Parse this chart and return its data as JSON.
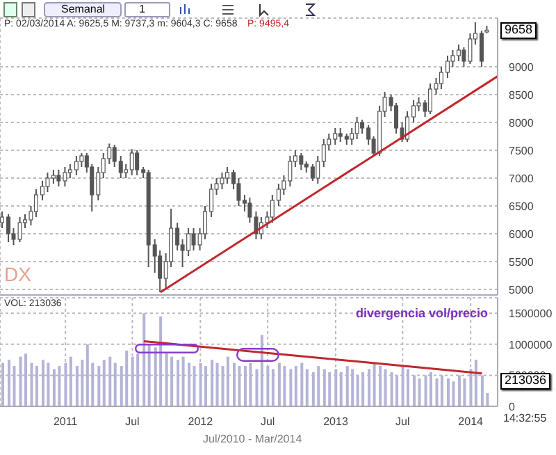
{
  "chart_data": [
    {
      "type": "candlestick",
      "color": "#555555",
      "grid": true,
      "tick_labels": "y",
      "annotations": [
        "P: 02/03/2014 A: 9625,5 M: 9737,3 m: 9604,3 C: 9658",
        "P: 9495,4",
        "DX",
        "9658",
        "Semanal",
        "1"
      ],
      "xlim": [
        "2010-07-08",
        "2014-03-15"
      ],
      "xticks": [
        {
          "value": "2011-01-01",
          "label": null
        },
        {
          "value": "2011-07-01",
          "label": null
        },
        {
          "value": "2012-01-01",
          "label": null
        },
        {
          "value": "2012-07-01",
          "label": null
        },
        {
          "value": "2013-01-01",
          "label": null
        },
        {
          "value": "2013-07-01",
          "label": null
        },
        {
          "value": "2014-01-01",
          "label": null
        }
      ],
      "ylim": [
        4900,
        9875
      ],
      "yticks": [
        5000,
        5500,
        6000,
        6500,
        7000,
        7500,
        8000,
        8500,
        9000
      ],
      "x": [
        "2010-07-15",
        "2010-08-01",
        "2010-08-15",
        "2010-09-01",
        "2010-09-15",
        "2010-10-01",
        "2010-10-15",
        "2010-11-01",
        "2010-11-15",
        "2010-12-01",
        "2010-12-15",
        "2011-01-01",
        "2011-01-15",
        "2011-02-01",
        "2011-02-15",
        "2011-03-01",
        "2011-03-15",
        "2011-04-01",
        "2011-04-15",
        "2011-05-01",
        "2011-05-15",
        "2011-06-01",
        "2011-06-15",
        "2011-07-01",
        "2011-07-15",
        "2011-08-01",
        "2011-08-15",
        "2011-09-01",
        "2011-09-15",
        "2011-10-01",
        "2011-10-15",
        "2011-11-01",
        "2011-11-15",
        "2011-12-01",
        "2011-12-15",
        "2012-01-01",
        "2012-01-15",
        "2012-02-01",
        "2012-02-15",
        "2012-03-01",
        "2012-03-15",
        "2012-04-01",
        "2012-04-15",
        "2012-05-01",
        "2012-05-15",
        "2012-06-01",
        "2012-06-15",
        "2012-07-01",
        "2012-07-15",
        "2012-08-01",
        "2012-08-15",
        "2012-09-01",
        "2012-09-15",
        "2012-10-01",
        "2012-10-15",
        "2012-11-01",
        "2012-11-15",
        "2012-12-01",
        "2012-12-15",
        "2013-01-01",
        "2013-01-15",
        "2013-02-01",
        "2013-02-15",
        "2013-03-01",
        "2013-03-15",
        "2013-04-01",
        "2013-04-15",
        "2013-05-01",
        "2013-05-15",
        "2013-06-01",
        "2013-06-15",
        "2013-07-01",
        "2013-07-15",
        "2013-08-01",
        "2013-08-15",
        "2013-09-01",
        "2013-09-15",
        "2013-10-01",
        "2013-10-15",
        "2013-11-01",
        "2013-11-15",
        "2013-12-01",
        "2013-12-15",
        "2014-01-01",
        "2014-01-15",
        "2014-02-01",
        "2014-02-15"
      ],
      "ohlc": [
        [
          6200,
          6400,
          6100,
          6300
        ],
        [
          6300,
          6350,
          5850,
          6000
        ],
        [
          6000,
          6100,
          5800,
          5900
        ],
        [
          5900,
          6300,
          5850,
          6200
        ],
        [
          6200,
          6350,
          6100,
          6250
        ],
        [
          6250,
          6500,
          6150,
          6400
        ],
        [
          6400,
          6800,
          6300,
          6700
        ],
        [
          6700,
          6950,
          6600,
          6850
        ],
        [
          6850,
          7100,
          6750,
          7000
        ],
        [
          7000,
          7150,
          6900,
          7050
        ],
        [
          7050,
          7150,
          6850,
          6950
        ],
        [
          6950,
          7200,
          6850,
          7100
        ],
        [
          7100,
          7250,
          7000,
          7150
        ],
        [
          7150,
          7400,
          7050,
          7300
        ],
        [
          7300,
          7450,
          7200,
          7400
        ],
        [
          7400,
          7450,
          7100,
          7200
        ],
        [
          7200,
          7250,
          6400,
          6700
        ],
        [
          6700,
          7200,
          6600,
          7100
        ],
        [
          7100,
          7450,
          7000,
          7350
        ],
        [
          7350,
          7620,
          7250,
          7550
        ],
        [
          7550,
          7600,
          7200,
          7300
        ],
        [
          7300,
          7400,
          7000,
          7100
        ],
        [
          7100,
          7250,
          7000,
          7150
        ],
        [
          7150,
          7520,
          7050,
          7450
        ],
        [
          7450,
          7500,
          7050,
          7150
        ],
        [
          7150,
          7200,
          7000,
          7100
        ],
        [
          7100,
          7150,
          5400,
          5800
        ],
        [
          5800,
          5900,
          5300,
          5600
        ],
        [
          5600,
          5700,
          4950,
          5200
        ],
        [
          5200,
          5650,
          5000,
          5500
        ],
        [
          5500,
          6450,
          5400,
          6100
        ],
        [
          6100,
          6200,
          5700,
          5800
        ],
        [
          5800,
          5900,
          5400,
          5700
        ],
        [
          5700,
          6100,
          5600,
          6000
        ],
        [
          6000,
          6100,
          5700,
          5800
        ],
        [
          5800,
          6100,
          5700,
          6000
        ],
        [
          6000,
          6500,
          5900,
          6400
        ],
        [
          6400,
          6900,
          6300,
          6800
        ],
        [
          6800,
          7000,
          6700,
          6900
        ],
        [
          6900,
          7100,
          6800,
          7000
        ],
        [
          7000,
          7200,
          6900,
          7100
        ],
        [
          7100,
          7150,
          6800,
          6900
        ],
        [
          6900,
          7000,
          6500,
          6600
        ],
        [
          6600,
          6700,
          6400,
          6550
        ],
        [
          6550,
          6650,
          6200,
          6300
        ],
        [
          6300,
          6400,
          5900,
          6000
        ],
        [
          6000,
          6300,
          5900,
          6200
        ],
        [
          6200,
          6400,
          6100,
          6300
        ],
        [
          6300,
          6700,
          6200,
          6600
        ],
        [
          6600,
          6900,
          6500,
          6800
        ],
        [
          6800,
          7050,
          6700,
          6950
        ],
        [
          6950,
          7400,
          6850,
          7300
        ],
        [
          7300,
          7500,
          7200,
          7400
        ],
        [
          7400,
          7450,
          7150,
          7250
        ],
        [
          7250,
          7300,
          7100,
          7200
        ],
        [
          7200,
          7250,
          6950,
          7000
        ],
        [
          7000,
          7400,
          6900,
          7300
        ],
        [
          7300,
          7700,
          7200,
          7600
        ],
        [
          7600,
          7800,
          7500,
          7700
        ],
        [
          7700,
          7900,
          7600,
          7800
        ],
        [
          7800,
          7900,
          7650,
          7750
        ],
        [
          7750,
          7800,
          7600,
          7700
        ],
        [
          7700,
          7900,
          7600,
          7800
        ],
        [
          7800,
          8100,
          7700,
          8000
        ],
        [
          8000,
          8050,
          7800,
          7900
        ],
        [
          7900,
          7950,
          7600,
          7700
        ],
        [
          7700,
          7750,
          7400,
          7450
        ],
        [
          7450,
          8300,
          7400,
          8200
        ],
        [
          8200,
          8550,
          8100,
          8450
        ],
        [
          8450,
          8500,
          8200,
          8300
        ],
        [
          8300,
          8350,
          7800,
          7900
        ],
        [
          7900,
          8000,
          7650,
          7700
        ],
        [
          7700,
          8200,
          7650,
          8100
        ],
        [
          8100,
          8400,
          8000,
          8300
        ],
        [
          8300,
          8450,
          8200,
          8350
        ],
        [
          8350,
          8400,
          8100,
          8200
        ],
        [
          8200,
          8700,
          8150,
          8600
        ],
        [
          8600,
          8800,
          8500,
          8700
        ],
        [
          8700,
          9000,
          8600,
          8900
        ],
        [
          8900,
          9200,
          8800,
          9100
        ],
        [
          9100,
          9300,
          9000,
          9200
        ],
        [
          9200,
          9400,
          9100,
          9300
        ],
        [
          9300,
          9350,
          9000,
          9100
        ],
        [
          9100,
          9600,
          9050,
          9500
        ],
        [
          9500,
          9800,
          9400,
          9600
        ],
        [
          9600,
          9650,
          9000,
          9100
        ],
        [
          9625.5,
          9737.3,
          9604.3,
          9658
        ]
      ],
      "series": [
        {
          "type": "line",
          "color": "#c0282d",
          "x": [
            "2011-09-15",
            "2014-03-15"
          ],
          "values": [
            4950,
            8830
          ]
        }
      ]
    },
    {
      "type": "bar",
      "color": "#b4b4d8",
      "grid": true,
      "annotations": [
        "VOL: 213036",
        "divergencia vol/precio",
        "213036",
        "Jul/2010 - Mar/2014",
        "14:32:55"
      ],
      "xlim": [
        "2010-07-08",
        "2014-03-15"
      ],
      "xticks": [
        {
          "value": "2011-01-01",
          "label": "2011"
        },
        {
          "value": "2011-07-01",
          "label": "Jul"
        },
        {
          "value": "2012-01-01",
          "label": "2012"
        },
        {
          "value": "2012-07-01",
          "label": "Jul"
        },
        {
          "value": "2013-01-01",
          "label": "2013"
        },
        {
          "value": "2013-07-01",
          "label": "Jul"
        },
        {
          "value": "2014-01-01",
          "label": "2014"
        }
      ],
      "ylim": [
        0,
        1750000
      ],
      "yticks": [
        0,
        500000,
        1000000,
        1500000
      ],
      "x": [
        "2010-07-15",
        "2010-08-01",
        "2010-08-15",
        "2010-09-01",
        "2010-09-15",
        "2010-10-01",
        "2010-10-15",
        "2010-11-01",
        "2010-11-15",
        "2010-12-01",
        "2010-12-15",
        "2011-01-01",
        "2011-01-15",
        "2011-02-01",
        "2011-02-15",
        "2011-03-01",
        "2011-03-15",
        "2011-04-01",
        "2011-04-15",
        "2011-05-01",
        "2011-05-15",
        "2011-06-01",
        "2011-06-15",
        "2011-07-01",
        "2011-07-15",
        "2011-08-01",
        "2011-08-15",
        "2011-09-01",
        "2011-09-15",
        "2011-10-01",
        "2011-10-15",
        "2011-11-01",
        "2011-11-15",
        "2011-12-01",
        "2011-12-15",
        "2012-01-01",
        "2012-01-15",
        "2012-02-01",
        "2012-02-15",
        "2012-03-01",
        "2012-03-15",
        "2012-04-01",
        "2012-04-15",
        "2012-05-01",
        "2012-05-15",
        "2012-06-01",
        "2012-06-15",
        "2012-07-01",
        "2012-07-15",
        "2012-08-01",
        "2012-08-15",
        "2012-09-01",
        "2012-09-15",
        "2012-10-01",
        "2012-10-15",
        "2012-11-01",
        "2012-11-15",
        "2012-12-01",
        "2012-12-15",
        "2013-01-01",
        "2013-01-15",
        "2013-02-01",
        "2013-02-15",
        "2013-03-01",
        "2013-03-15",
        "2013-04-01",
        "2013-04-15",
        "2013-05-01",
        "2013-05-15",
        "2013-06-01",
        "2013-06-15",
        "2013-07-01",
        "2013-07-15",
        "2013-08-01",
        "2013-08-15",
        "2013-09-01",
        "2013-09-15",
        "2013-10-01",
        "2013-10-15",
        "2013-11-01",
        "2013-11-15",
        "2013-12-01",
        "2013-12-15",
        "2014-01-01",
        "2014-01-15",
        "2014-02-01",
        "2014-02-15"
      ],
      "values": [
        700000,
        750000,
        650000,
        800000,
        850000,
        700000,
        650000,
        750000,
        700000,
        600000,
        650000,
        700000,
        800000,
        650000,
        750000,
        1000000,
        700000,
        650000,
        750000,
        800000,
        700000,
        650000,
        900000,
        800000,
        850000,
        1500000,
        1000000,
        950000,
        1450000,
        850000,
        800000,
        750000,
        800000,
        700000,
        650000,
        700000,
        650000,
        750000,
        700000,
        650000,
        800000,
        700000,
        650000,
        650000,
        700000,
        600000,
        1150000,
        650000,
        600000,
        700000,
        650000,
        600000,
        650000,
        700000,
        600000,
        550000,
        650000,
        600000,
        550000,
        600000,
        550000,
        650000,
        600000,
        500000,
        550000,
        600000,
        700000,
        650000,
        600000,
        550000,
        500000,
        650000,
        600000,
        500000,
        450000,
        500000,
        550000,
        450000,
        500000,
        450000,
        400000,
        500000,
        450000,
        600000,
        750000,
        500000,
        213036
      ],
      "series": [
        {
          "type": "line",
          "color": "#c0282d",
          "x": [
            "2011-08-01",
            "2014-02-01"
          ],
          "values": [
            1050000,
            530000
          ]
        }
      ]
    }
  ]
}
